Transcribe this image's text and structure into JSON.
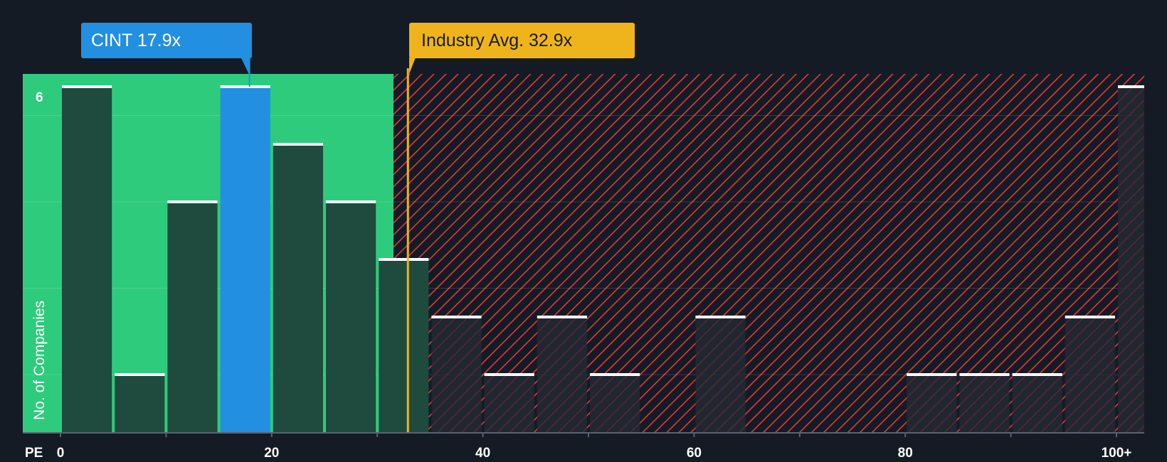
{
  "chart_data": {
    "type": "bar",
    "x_axis_label": "PE",
    "y_axis_label": "No. of Companies",
    "x_ticks": [
      "0",
      "20",
      "40",
      "60",
      "80",
      "100+"
    ],
    "y_ticks": [
      "6"
    ],
    "xlim": [
      0,
      100
    ],
    "ylim": [
      0,
      6
    ],
    "bins": [
      {
        "from": 0,
        "to": 5,
        "count": 6
      },
      {
        "from": 5,
        "to": 10,
        "count": 1
      },
      {
        "from": 10,
        "to": 15,
        "count": 4
      },
      {
        "from": 15,
        "to": 20,
        "count": 6,
        "highlighted": true
      },
      {
        "from": 20,
        "to": 25,
        "count": 5
      },
      {
        "from": 25,
        "to": 30,
        "count": 4
      },
      {
        "from": 30,
        "to": 35,
        "count": 3
      },
      {
        "from": 35,
        "to": 40,
        "count": 2
      },
      {
        "from": 40,
        "to": 45,
        "count": 1
      },
      {
        "from": 45,
        "to": 50,
        "count": 2
      },
      {
        "from": 50,
        "to": 55,
        "count": 1
      },
      {
        "from": 55,
        "to": 60,
        "count": 0
      },
      {
        "from": 60,
        "to": 65,
        "count": 2
      },
      {
        "from": 65,
        "to": 70,
        "count": 0
      },
      {
        "from": 70,
        "to": 75,
        "count": 0
      },
      {
        "from": 75,
        "to": 80,
        "count": 0
      },
      {
        "from": 80,
        "to": 85,
        "count": 1
      },
      {
        "from": 85,
        "to": 90,
        "count": 1
      },
      {
        "from": 90,
        "to": 95,
        "count": 1
      },
      {
        "from": 95,
        "to": 100,
        "count": 2
      },
      {
        "from": 100,
        "to": null,
        "count": 6
      }
    ],
    "company": {
      "ticker": "CINT",
      "pe": 17.9,
      "label": "CINT 17.9x"
    },
    "industry": {
      "avg_pe": 32.9,
      "label": "Industry Avg. 32.9x"
    },
    "grid": true,
    "colors": {
      "background": "#151b24",
      "fair_zone": "#2ecb7c",
      "bar_fair": "#1e4b3e",
      "bar_highlight": "#228fe0",
      "expensive_hatch": "#e0393f",
      "bar_expensive": "#262a34",
      "company_callout": "#228fe0",
      "industry_callout": "#efb41c",
      "bar_cap": "#ffffff"
    }
  }
}
